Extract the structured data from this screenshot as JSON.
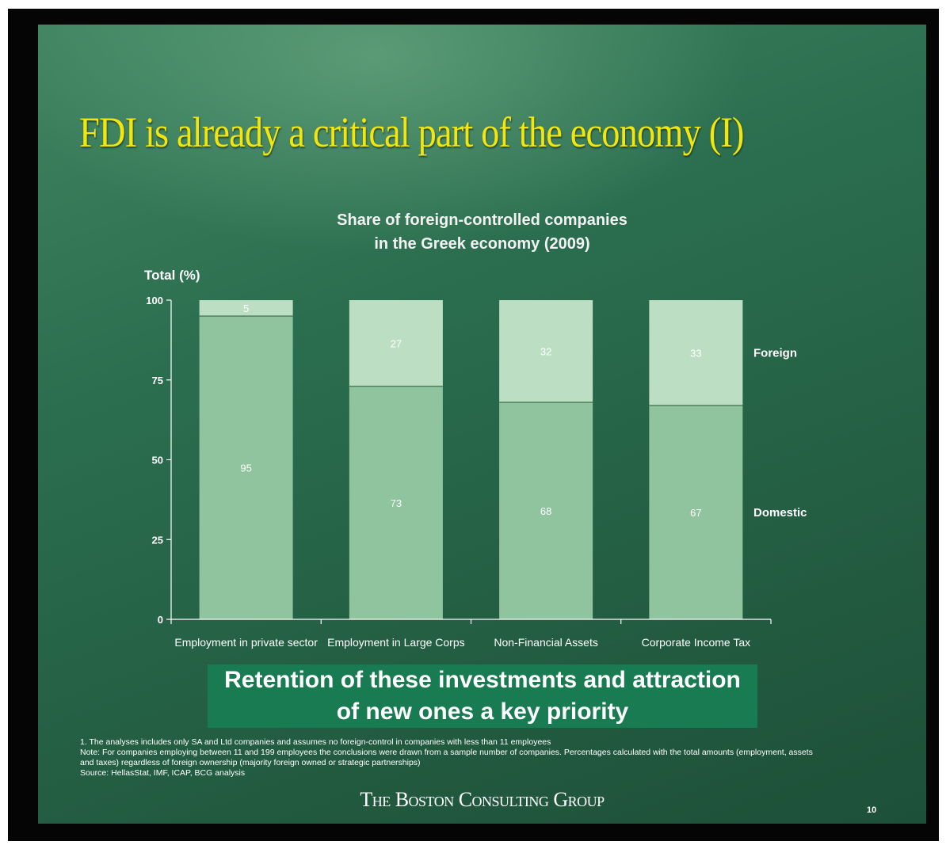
{
  "slide": {
    "title": "FDI is already a critical part of the economy (I)",
    "banner": [
      "Retention of these investments and attraction",
      "of new ones a key priority"
    ],
    "notes": [
      "1. The analyses includes only SA and Ltd companies and assumes no foreign-control in companies with less than 11 employees",
      "Note: For companies employing between 11 and 199 employees the conclusions were drawn from a sample number of companies. Percentages calculated with the total amounts (employment, assets",
      "and taxes)  regardless of foreign ownership (majority foreign owned or strategic partnerships)",
      "Source: HellasStat, IMF, ICAP, BCG analysis"
    ],
    "brand": "The Boston Consulting Group",
    "page_number": "10"
  },
  "chart_data": {
    "type": "bar",
    "stacked": true,
    "title_lines": [
      "Share of foreign-controlled companies",
      "in the Greek economy (2009)"
    ],
    "ylabel": "Total (%)",
    "ylim": [
      0,
      100
    ],
    "yticks": [
      "0",
      "25",
      "50",
      "75",
      "100"
    ],
    "categories": [
      "Employment in private sector",
      "Employment in Large Corps",
      "Non-Financial Assets",
      "Corporate Income Tax"
    ],
    "series": [
      {
        "name": "Domestic",
        "values": [
          95,
          73,
          68,
          67
        ],
        "color": "#8fc49f"
      },
      {
        "name": "Foreign",
        "values": [
          5,
          27,
          32,
          33
        ],
        "color": "#bcdfc4"
      }
    ],
    "legend": "right, labels beside last bar"
  }
}
